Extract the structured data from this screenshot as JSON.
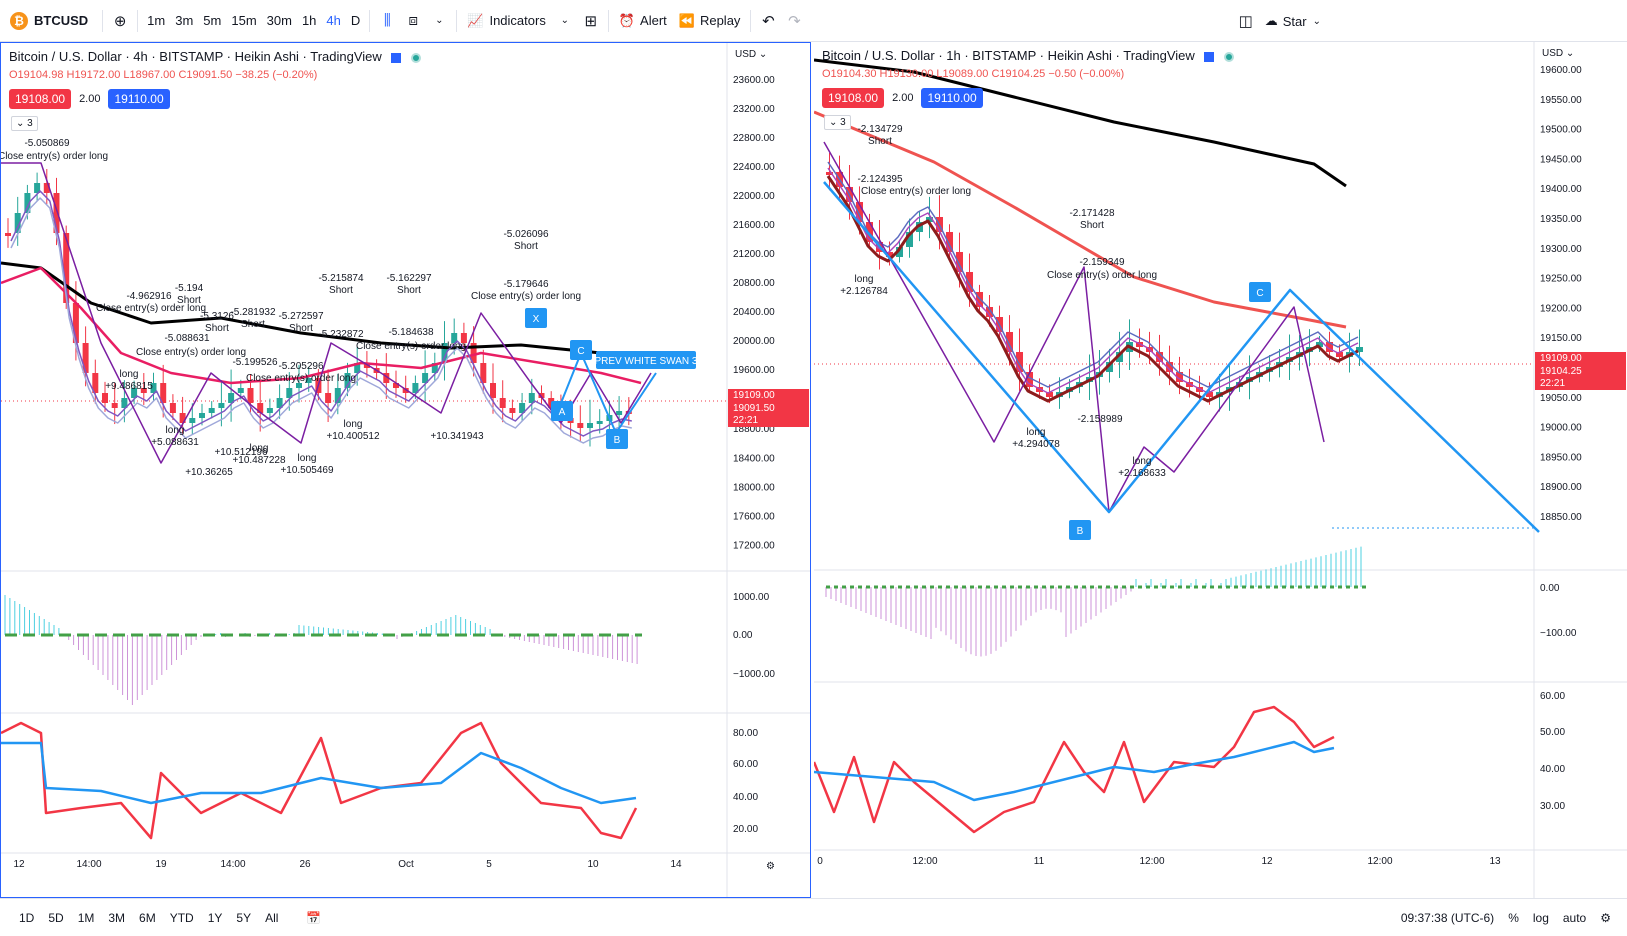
{
  "toolbar": {
    "symbol": "BTCUSD",
    "timeframes": [
      "1m",
      "3m",
      "5m",
      "15m",
      "30m",
      "1h",
      "4h",
      "D"
    ],
    "active_timeframe": "4h",
    "indicators_label": "Indicators",
    "alert_label": "Alert",
    "replay_label": "Replay",
    "star_label": "Star"
  },
  "left_pane": {
    "title": "Bitcoin / U.S. Dollar · 4h · BITSTAMP · Heikin Ashi · TradingView",
    "ohlc": {
      "o": "O19104.98",
      "h": "H19172.00",
      "l": "L18967.00",
      "c": "C19091.50",
      "chg": "−38.25 (−0.20%)"
    },
    "sell_price": "19108.00",
    "spread": "2.00",
    "buy_price": "19110.00",
    "collapse_label": "3",
    "currency": "USD",
    "price_ticks": [
      "23600.00",
      "23200.00",
      "22800.00",
      "22400.00",
      "22000.00",
      "21600.00",
      "21200.00",
      "20800.00",
      "20400.00",
      "20000.00",
      "19600.00",
      "18800.00",
      "18400.00",
      "18000.00",
      "17600.00",
      "17200.00"
    ],
    "last_price_1": "19109.00",
    "last_price_2": "19091.50",
    "countdown": "22:21",
    "macd_ticks": [
      "1000.00",
      "0.00",
      "−1000.00"
    ],
    "rsi_ticks": [
      "80.00",
      "60.00",
      "40.00",
      "20.00"
    ],
    "time_ticks": [
      "12",
      "14:00",
      "19",
      "14:00",
      "26",
      "Oct",
      "5",
      "10",
      "14"
    ],
    "pattern_label": "PREV WHITE SWAN 3",
    "point_labels": [
      "A",
      "B",
      "C",
      "X"
    ],
    "annotations": [
      "-5.050869",
      "Close entry(s) order long",
      "-4.962916",
      "-5.194",
      "Short",
      "Close entry(s) order long",
      "-5.088631",
      "-5.3126",
      "Short",
      "Close entry(s) order long",
      "-5.281932",
      "Short",
      "-5.272597",
      "Short",
      "-5.215874",
      "Short",
      "-5.162297",
      "Short",
      "-5.026096",
      "Short",
      "-5.179646",
      "Close entry(s) order long",
      "-5.232872",
      "-5.184638",
      "Close entry(s) order long",
      "-5.199526",
      "-5.205296",
      "Close entry(s) order long",
      "+9.486815",
      "long",
      "+5.088631",
      "long",
      "+10.36265",
      "+10.512196",
      "+10.487228",
      "long",
      "+10.505469",
      "long",
      "+10.400512",
      "long",
      "+10.341943"
    ]
  },
  "right_pane": {
    "title": "Bitcoin / U.S. Dollar · 1h · BITSTAMP · Heikin Ashi · TradingView",
    "ohlc": {
      "o": "O19104.30",
      "h": "H19130.00",
      "l": "L19089.00",
      "c": "C19104.25",
      "chg": "−0.50 (−0.00%)"
    },
    "sell_price": "19108.00",
    "spread": "2.00",
    "buy_price": "19110.00",
    "collapse_label": "3",
    "currency": "USD",
    "price_ticks": [
      "19600.00",
      "19550.00",
      "19500.00",
      "19450.00",
      "19400.00",
      "19350.00",
      "19300.00",
      "19250.00",
      "19200.00",
      "19150.00",
      "19050.00",
      "19000.00",
      "18950.00",
      "18900.00",
      "18850.00"
    ],
    "last_price_1": "19109.00",
    "last_price_2": "19104.25",
    "countdown": "22:21",
    "macd_ticks": [
      "0.00",
      "−100.00"
    ],
    "rsi_ticks": [
      "60.00",
      "50.00",
      "40.00",
      "30.00"
    ],
    "time_ticks": [
      "0",
      "12:00",
      "11",
      "12:00",
      "12",
      "12:00",
      "13"
    ],
    "point_labels": [
      "B",
      "C"
    ],
    "annotations": [
      "-2.134729",
      "Short",
      "-2.124395",
      "Close entry(s) order long",
      "long",
      "+2.126784",
      "-2.171428",
      "Short",
      "-2.159349",
      "Close entry(s) order long",
      "long",
      "+4.294078",
      "-2.158989",
      "long",
      "+2.168633"
    ]
  },
  "bottombar": {
    "ranges": [
      "1D",
      "5D",
      "1M",
      "3M",
      "6M",
      "YTD",
      "1Y",
      "5Y",
      "All"
    ],
    "clock": "09:37:38 (UTC-6)",
    "percent": "%",
    "log": "log",
    "auto": "auto"
  },
  "colors": {
    "accent": "#2962ff",
    "up": "#26a69a",
    "down": "#f23645",
    "ma_red": "#ef5350",
    "ma_purple": "#7e57c2",
    "ma_black": "#000000"
  }
}
